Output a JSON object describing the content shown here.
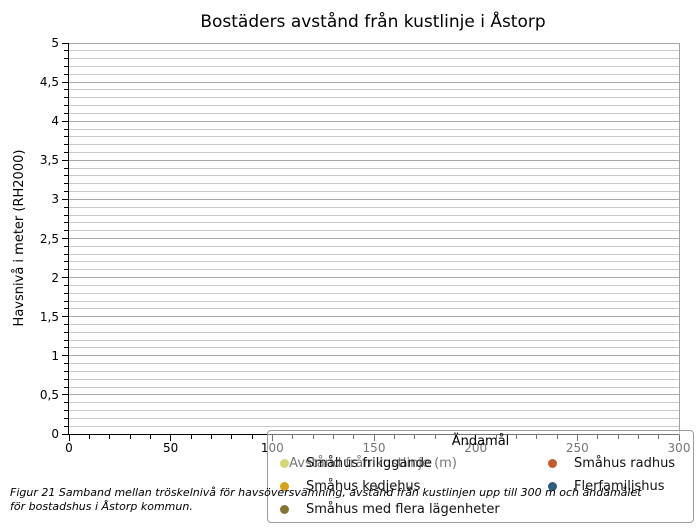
{
  "figure": {
    "title": "Bostäders avstånd från kustlinje i Åstorp",
    "caption_lines": [
      "Figur 21 Samband mellan tröskelnivå för havsöversvämning, avstånd från kustlinjen upp till 300 m och ändamålet",
      "för bostadshus i Åstorp kommun."
    ]
  },
  "x_axis": {
    "label": "Avstånd från kustlinje (m)",
    "tick_labels": [
      "0",
      "50",
      "100",
      "150",
      "200",
      "250",
      "300"
    ]
  },
  "y_axis": {
    "label": "Havsnivå i meter (RH2000)",
    "tick_labels": [
      "0",
      "0,5",
      "1",
      "1,5",
      "2",
      "2,5",
      "3",
      "3,5",
      "4",
      "4,5",
      "5"
    ]
  },
  "legend": {
    "title": "Ändamål",
    "columns": [
      [
        {
          "label": "Småhus friliggande",
          "color": "#d2d873"
        },
        {
          "label": "Småhus kedjehus",
          "color": "#d6a315"
        },
        {
          "label": "Småhus med flera lägenheter",
          "color": "#847430"
        }
      ],
      [
        {
          "label": "Småhus radhus",
          "color": "#c25b2e"
        },
        {
          "label": "Flerfamiljshus",
          "color": "#2f5b7c"
        }
      ]
    ]
  },
  "chart_data": {
    "type": "scatter",
    "title": "Bostäders avstånd från kustlinje i Åstorp",
    "xlabel": "Avstånd från kustlinje (m)",
    "ylabel": "Havsnivå i meter (RH2000)",
    "xlim": [
      0,
      300
    ],
    "ylim": [
      0,
      5
    ],
    "x_major_ticks": [
      0,
      50,
      100,
      150,
      200,
      250,
      300
    ],
    "x_minor_step": 10,
    "y_major_ticks": [
      0,
      0.5,
      1,
      1.5,
      2,
      2.5,
      3,
      3.5,
      4,
      4.5,
      5
    ],
    "y_minor_step": 0.1,
    "grid": {
      "horizontal_minor": true,
      "horizontal_major": true,
      "vertical": false
    },
    "legend_title": "Ändamål",
    "legend_position": "lower right inside plot",
    "series": [
      {
        "name": "Småhus friliggande",
        "color": "#d2d873",
        "points": []
      },
      {
        "name": "Småhus radhus",
        "color": "#c25b2e",
        "points": []
      },
      {
        "name": "Småhus kedjehus",
        "color": "#d6a315",
        "points": []
      },
      {
        "name": "Flerfamiljshus",
        "color": "#2f5b7c",
        "points": []
      },
      {
        "name": "Småhus med flera lägenheter",
        "color": "#847430",
        "points": []
      }
    ]
  }
}
